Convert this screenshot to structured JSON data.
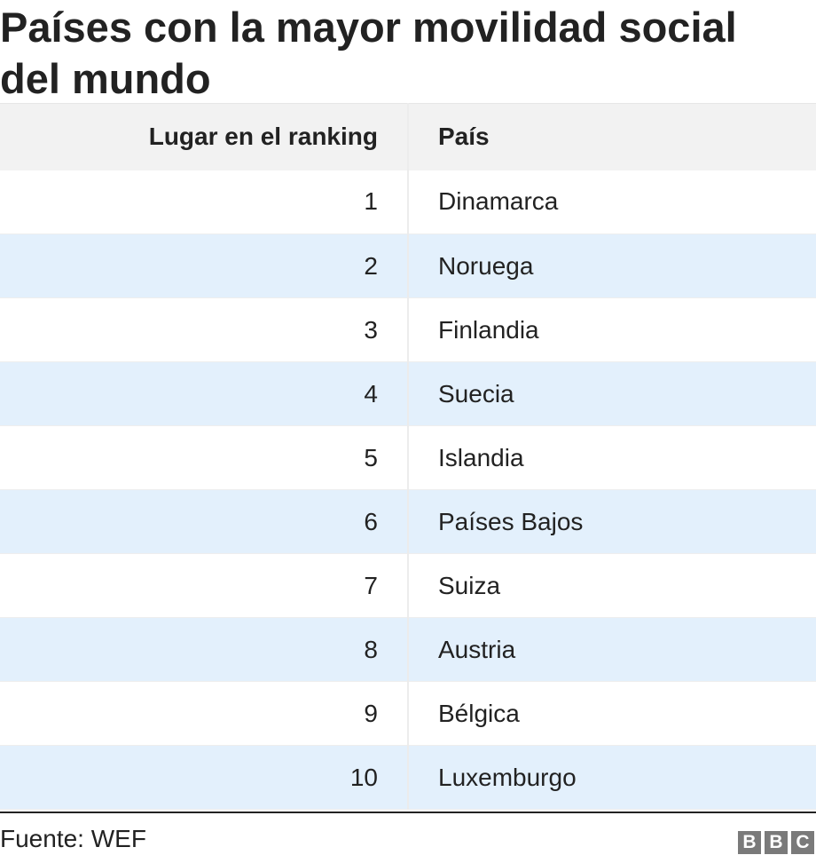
{
  "chart_data": {
    "type": "table",
    "title": "Países con la mayor movilidad social del mundo",
    "columns": [
      "Lugar en el ranking",
      "País"
    ],
    "rows": [
      {
        "rank": "1",
        "country": "Dinamarca"
      },
      {
        "rank": "2",
        "country": "Noruega"
      },
      {
        "rank": "3",
        "country": "Finlandia"
      },
      {
        "rank": "4",
        "country": "Suecia"
      },
      {
        "rank": "5",
        "country": "Islandia"
      },
      {
        "rank": "6",
        "country": "Países Bajos"
      },
      {
        "rank": "7",
        "country": "Suiza"
      },
      {
        "rank": "8",
        "country": "Austria"
      },
      {
        "rank": "9",
        "country": "Bélgica"
      },
      {
        "rank": "10",
        "country": "Luxemburgo"
      }
    ],
    "source": "Fuente: WEF",
    "logo_letters": [
      "B",
      "B",
      "C"
    ],
    "colors": {
      "header_bg": "#f2f2f2",
      "row_alt_bg": "#e3f0fc",
      "text": "#222222",
      "logo": "#7a7a7a"
    }
  }
}
